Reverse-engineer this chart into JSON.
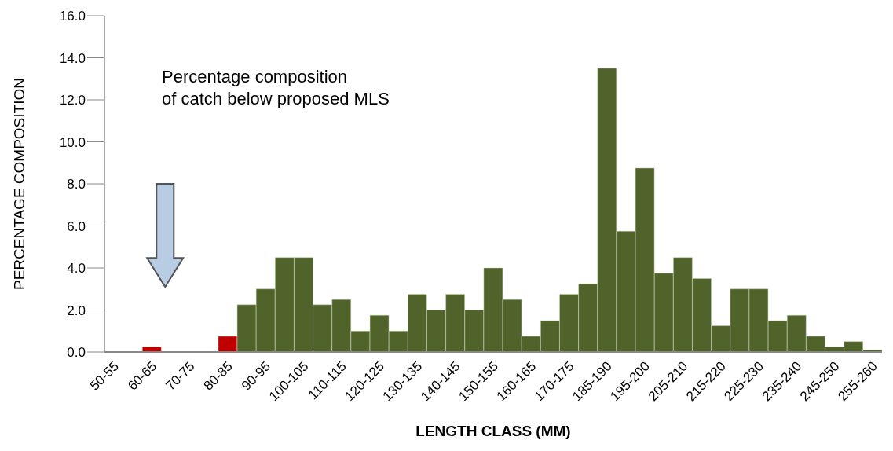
{
  "chart_data": {
    "type": "bar",
    "xlabel": "LENGTH CLASS (MM)",
    "ylabel": "PERCENTAGE COMPOSITION",
    "annotations": [
      "Percentage composition\nof catch below proposed MLS"
    ],
    "categories": [
      "50-55",
      null,
      "60-65",
      null,
      "70-75",
      null,
      "80-85",
      null,
      "90-95",
      null,
      "100-105",
      null,
      "110-115",
      null,
      "120-125",
      null,
      "130-135",
      null,
      "140-145",
      null,
      "150-155",
      null,
      "160-165",
      null,
      "170-175",
      null,
      "185-190",
      null,
      "195-200",
      null,
      "205-210",
      null,
      "215-220",
      null,
      "225-230",
      null,
      "235-240",
      null,
      "245-250",
      null,
      "255-260"
    ],
    "values": [
      0,
      0,
      0.25,
      0,
      0,
      0,
      0.75,
      2.25,
      3.0,
      4.5,
      4.5,
      2.25,
      2.5,
      1.0,
      1.75,
      1.0,
      2.75,
      2.0,
      2.75,
      2.0,
      4.0,
      2.5,
      0.75,
      1.5,
      2.75,
      3.25,
      13.5,
      5.75,
      8.75,
      3.75,
      4.5,
      3.5,
      1.25,
      3.0,
      3.0,
      1.5,
      1.75,
      0.75,
      0.25,
      0.5,
      0.1
    ],
    "colors": [
      "#c00000",
      "#c00000",
      "#c00000",
      "#c00000",
      "#c00000",
      "#c00000",
      "#c00000",
      "#50632a",
      "#50632a",
      "#50632a",
      "#50632a",
      "#50632a",
      "#50632a",
      "#50632a",
      "#50632a",
      "#50632a",
      "#50632a",
      "#50632a",
      "#50632a",
      "#50632a",
      "#50632a",
      "#50632a",
      "#50632a",
      "#50632a",
      "#50632a",
      "#50632a",
      "#50632a",
      "#50632a",
      "#50632a",
      "#50632a",
      "#50632a",
      "#50632a",
      "#50632a",
      "#50632a",
      "#50632a",
      "#50632a",
      "#50632a",
      "#50632a",
      "#50632a",
      "#50632a",
      "#50632a"
    ],
    "ylim": [
      0,
      16
    ],
    "yticks": [
      {
        "value": 0,
        "label": "0.0"
      },
      {
        "value": 2,
        "label": "2.0"
      },
      {
        "value": 4,
        "label": "4.0"
      },
      {
        "value": 6,
        "label": "6.0"
      },
      {
        "value": 8,
        "label": "8.0"
      },
      {
        "value": 10,
        "label": "10.0"
      },
      {
        "value": 12,
        "label": "12.0"
      },
      {
        "value": 14,
        "label": "14.0"
      },
      {
        "value": 16,
        "label": "16.0"
      }
    ],
    "grid": false,
    "legend": false
  }
}
